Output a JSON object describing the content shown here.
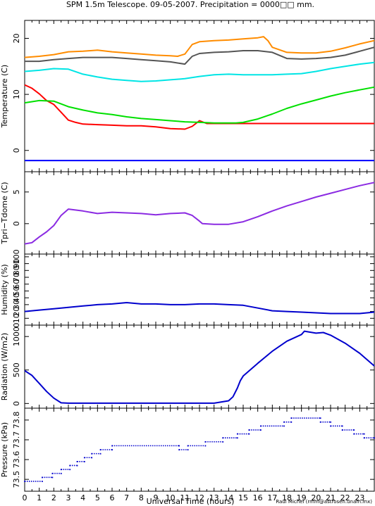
{
  "title": "SPM 1.5m Telescope. 09-05-2007. Precipitation = 0000□□ mm.",
  "xlabel": "Universal Time (hours)",
  "credit": "Raul Michel (rmm@astrosen.unam.mx)",
  "x_ticks": [
    "0",
    "1",
    "2",
    "3",
    "4",
    "5",
    "6",
    "7",
    "8",
    "9",
    "10",
    "11",
    "12",
    "13",
    "14",
    "15",
    "16",
    "17",
    "18",
    "19",
    "20",
    "21",
    "22",
    "23"
  ],
  "chart_data": [
    {
      "type": "line",
      "ylabel": "Temperature (C)",
      "xlim": [
        0,
        24
      ],
      "ylim": [
        -3.8,
        23.2
      ],
      "yticks": [
        "0",
        "10",
        "20"
      ],
      "grid": false,
      "series": [
        {
          "color": "#ff8c00",
          "x": [
            0,
            1,
            2,
            3,
            4,
            5,
            6,
            7,
            8,
            9,
            10,
            10.5,
            11,
            11.5,
            12,
            13,
            14,
            15,
            16,
            16.4,
            16.7,
            17,
            18,
            19,
            20,
            21,
            22,
            23,
            24
          ],
          "y": [
            16.6,
            16.8,
            17.1,
            17.6,
            17.7,
            17.9,
            17.6,
            17.4,
            17.2,
            17.0,
            16.9,
            16.8,
            17.2,
            18.9,
            19.4,
            19.6,
            19.7,
            19.9,
            20.1,
            20.3,
            19.6,
            18.4,
            17.5,
            17.4,
            17.4,
            17.7,
            18.3,
            19.0,
            19.6
          ]
        },
        {
          "color": "#555555",
          "x": [
            0,
            1,
            2,
            3,
            4,
            5,
            6,
            7,
            8,
            9,
            10,
            11,
            11.5,
            12,
            13,
            14,
            15,
            16,
            17,
            18,
            19,
            20,
            21,
            22,
            23,
            24
          ],
          "y": [
            15.9,
            15.9,
            16.2,
            16.4,
            16.6,
            16.6,
            16.6,
            16.4,
            16.2,
            16.0,
            15.8,
            15.4,
            16.8,
            17.3,
            17.5,
            17.6,
            17.8,
            17.8,
            17.5,
            16.4,
            16.3,
            16.4,
            16.6,
            17.0,
            17.7,
            18.4
          ]
        },
        {
          "color": "#00e5e5",
          "x": [
            0,
            1,
            2,
            3,
            4,
            5,
            6,
            7,
            8,
            9,
            10,
            11,
            12,
            13,
            14,
            15,
            16,
            17,
            18,
            19,
            20,
            21,
            22,
            23,
            24
          ],
          "y": [
            14.1,
            14.3,
            14.6,
            14.5,
            13.6,
            13.1,
            12.7,
            12.5,
            12.3,
            12.4,
            12.6,
            12.8,
            13.2,
            13.5,
            13.6,
            13.5,
            13.5,
            13.5,
            13.6,
            13.7,
            14.1,
            14.6,
            15.0,
            15.4,
            15.7
          ]
        },
        {
          "color": "#ff0000",
          "x": [
            0,
            0.5,
            1,
            1.5,
            2,
            2.5,
            3,
            3.5,
            4,
            5,
            6,
            7,
            8,
            9,
            10,
            11,
            11.5,
            12,
            12.5,
            13,
            14,
            15,
            16,
            17,
            18,
            19,
            20,
            21,
            22,
            23,
            24
          ],
          "y": [
            11.7,
            11.1,
            10.1,
            8.9,
            8.2,
            6.8,
            5.4,
            5.0,
            4.7,
            4.6,
            4.5,
            4.4,
            4.4,
            4.2,
            3.9,
            3.8,
            4.3,
            5.3,
            4.8,
            4.8,
            4.8,
            4.8,
            4.8,
            4.8,
            4.8,
            4.8,
            4.8,
            4.8,
            4.8,
            4.8,
            4.8
          ]
        },
        {
          "color": "#00e000",
          "x": [
            0,
            1,
            2,
            3,
            4,
            5,
            6,
            7,
            8,
            9,
            10,
            11,
            12,
            13,
            14,
            14.5,
            15,
            16,
            17,
            18,
            19,
            20,
            21,
            22,
            23,
            24
          ],
          "y": [
            8.5,
            8.9,
            8.8,
            7.8,
            7.2,
            6.7,
            6.4,
            6.0,
            5.7,
            5.5,
            5.3,
            5.1,
            5.0,
            4.9,
            4.9,
            4.9,
            5.0,
            5.6,
            6.5,
            7.5,
            8.3,
            9.0,
            9.7,
            10.3,
            10.8,
            11.3
          ]
        },
        {
          "color": "#0000ff",
          "x": [
            0,
            24
          ],
          "y": [
            -1.8,
            -1.8
          ]
        }
      ]
    },
    {
      "type": "line",
      "ylabel": "Tpri−Tdome (C)",
      "xlim": [
        0,
        24
      ],
      "ylim": [
        -4.8,
        8.2
      ],
      "yticks": [
        "0",
        "5"
      ],
      "grid": false,
      "series": [
        {
          "color": "#8b2be2",
          "x": [
            0,
            0.5,
            1,
            1.5,
            2,
            2.5,
            3,
            4,
            5,
            6,
            7,
            8,
            9,
            10,
            11,
            11.5,
            12,
            12.2,
            13,
            14,
            15,
            16,
            17,
            18,
            19,
            20,
            21,
            22,
            23,
            24
          ],
          "y": [
            -3.2,
            -3.0,
            -2.1,
            -1.3,
            -0.3,
            1.3,
            2.3,
            2.0,
            1.6,
            1.8,
            1.7,
            1.6,
            1.4,
            1.6,
            1.7,
            1.3,
            0.4,
            0.0,
            -0.1,
            -0.1,
            0.3,
            1.1,
            2.0,
            2.8,
            3.5,
            4.2,
            4.8,
            5.4,
            6.0,
            6.5
          ]
        }
      ]
    },
    {
      "type": "line",
      "ylabel": "Humidity (%)",
      "xlim": [
        0,
        24
      ],
      "ylim": [
        0,
        104
      ],
      "yticks": [
        "0",
        "10",
        "20",
        "30",
        "40",
        "50",
        "60",
        "70",
        "80",
        "90",
        "100"
      ],
      "grid": false,
      "series": [
        {
          "color": "#0000cd",
          "x": [
            0,
            1,
            2,
            3,
            4,
            5,
            6,
            7,
            8,
            9,
            10,
            11,
            12,
            13,
            14,
            15,
            16,
            17,
            18,
            19,
            20,
            21,
            22,
            23,
            24
          ],
          "y": [
            20,
            22,
            24,
            26,
            28,
            30,
            31,
            33,
            31,
            31,
            30,
            30,
            31,
            31,
            30,
            29,
            25,
            21,
            20,
            19,
            18,
            17,
            17,
            17,
            19
          ]
        }
      ]
    },
    {
      "type": "line",
      "ylabel": "Radiation (W/m2)",
      "xlim": [
        0,
        24
      ],
      "ylim": [
        -70,
        1170
      ],
      "yticks": [
        "0",
        "500",
        "1000"
      ],
      "grid": false,
      "series": [
        {
          "color": "#0000cd",
          "x": [
            0,
            0.5,
            1,
            1.5,
            2,
            2.5,
            3,
            5,
            7,
            9,
            11,
            13,
            14,
            14.3,
            14.6,
            14.8,
            15,
            16,
            17,
            18,
            19,
            19.2,
            20,
            20.5,
            21,
            22,
            23,
            24
          ],
          "y": [
            490,
            420,
            300,
            180,
            80,
            10,
            5,
            5,
            5,
            5,
            5,
            5,
            40,
            100,
            230,
            340,
            410,
            600,
            780,
            930,
            1030,
            1080,
            1050,
            1060,
            1020,
            900,
            750,
            560
          ]
        }
      ]
    },
    {
      "type": "scatter",
      "ylabel": "Pressure (kPa)",
      "xlim": [
        0,
        24
      ],
      "ylim": [
        73.44,
        73.86
      ],
      "yticks": [
        "73.5",
        "73.6",
        "73.7",
        "73.8"
      ],
      "ytick_display": "73.5 73.6 73.7 73.8",
      "grid": false,
      "series": [
        {
          "color": "#0000cd",
          "points": [
            [
              0,
              73.49
            ],
            [
              1.2,
              73.49
            ],
            [
              1.2,
              73.51
            ],
            [
              1.9,
              73.51
            ],
            [
              1.9,
              73.53
            ],
            [
              2.5,
              73.53
            ],
            [
              2.5,
              73.55
            ],
            [
              3.1,
              73.55
            ],
            [
              3.1,
              73.57
            ],
            [
              3.6,
              73.57
            ],
            [
              3.6,
              73.59
            ],
            [
              4.1,
              73.59
            ],
            [
              4.1,
              73.61
            ],
            [
              4.6,
              73.61
            ],
            [
              4.6,
              73.63
            ],
            [
              5.2,
              73.63
            ],
            [
              5.2,
              73.65
            ],
            [
              6.0,
              73.65
            ],
            [
              6.0,
              73.67
            ],
            [
              10.6,
              73.67
            ],
            [
              10.6,
              73.65
            ],
            [
              11.2,
              73.65
            ],
            [
              11.2,
              73.67
            ],
            [
              12.4,
              73.67
            ],
            [
              12.4,
              73.69
            ],
            [
              13.6,
              73.69
            ],
            [
              13.6,
              73.71
            ],
            [
              14.6,
              73.71
            ],
            [
              14.6,
              73.73
            ],
            [
              15.4,
              73.73
            ],
            [
              15.4,
              73.75
            ],
            [
              16.2,
              73.75
            ],
            [
              16.2,
              73.77
            ],
            [
              17.8,
              73.77
            ],
            [
              17.8,
              73.79
            ],
            [
              18.3,
              73.79
            ],
            [
              18.3,
              73.81
            ],
            [
              20.3,
              73.81
            ],
            [
              20.3,
              73.79
            ],
            [
              21.0,
              73.79
            ],
            [
              21.0,
              73.77
            ],
            [
              21.8,
              73.77
            ],
            [
              21.8,
              73.75
            ],
            [
              22.6,
              73.75
            ],
            [
              22.6,
              73.73
            ],
            [
              23.3,
              73.73
            ],
            [
              23.3,
              73.71
            ],
            [
              24,
              73.71
            ]
          ]
        }
      ]
    }
  ]
}
